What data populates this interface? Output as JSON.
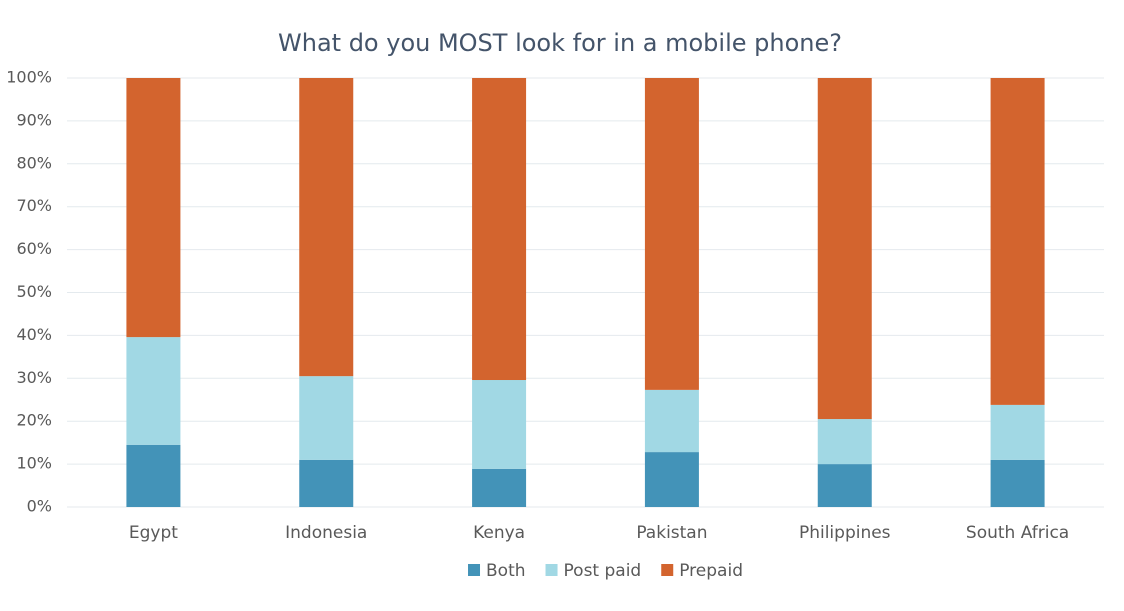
{
  "chart_data": {
    "type": "stacked_bar",
    "title": "What do you MOST look for in a mobile phone?",
    "categories": [
      "Egypt",
      "Indonesia",
      "Kenya",
      "Pakistan",
      "Philippines",
      "South Africa"
    ],
    "series": [
      {
        "name": "Both",
        "color": "#4393b8",
        "values": [
          14.5,
          11,
          8.9,
          12.8,
          10,
          11
        ]
      },
      {
        "name": "Post paid",
        "color": "#a1d8e4",
        "values": [
          25.1,
          19.5,
          20.7,
          14.5,
          10.5,
          12.8
        ]
      },
      {
        "name": "Prepaid",
        "color": "#d3642e",
        "values": [
          60.4,
          69.5,
          70.4,
          72.7,
          79.5,
          76.2
        ]
      }
    ],
    "ylim": [
      0,
      100
    ],
    "yticks": [
      {
        "value": 0,
        "label": "0%"
      },
      {
        "value": 10,
        "label": "10%"
      },
      {
        "value": 20,
        "label": "20%"
      },
      {
        "value": 30,
        "label": "30%"
      },
      {
        "value": 40,
        "label": "40%"
      },
      {
        "value": 50,
        "label": "50%"
      },
      {
        "value": 60,
        "label": "60%"
      },
      {
        "value": 70,
        "label": "70%"
      },
      {
        "value": 80,
        "label": "80%"
      },
      {
        "value": 90,
        "label": "90%"
      },
      {
        "value": 100,
        "label": "100%"
      }
    ],
    "grid": true,
    "legend": "bottom"
  }
}
